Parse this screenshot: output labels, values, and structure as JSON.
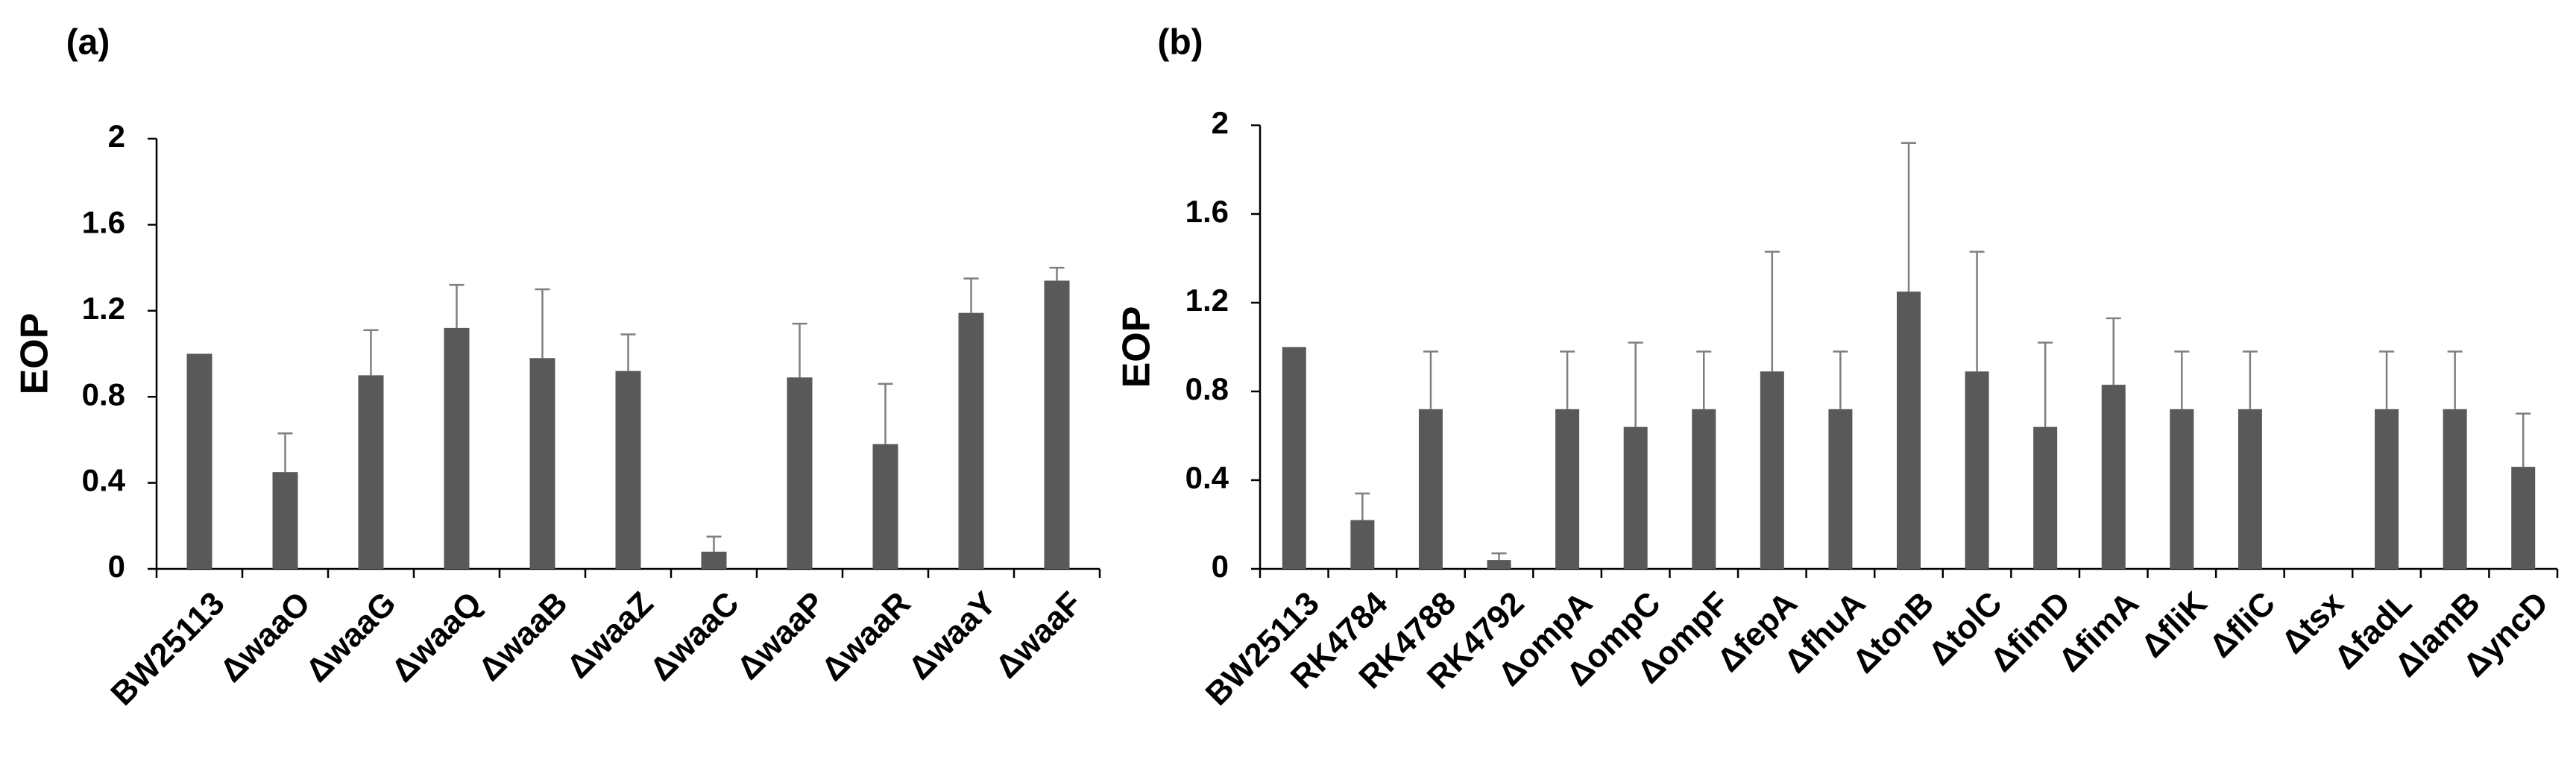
{
  "chart_data": [
    {
      "type": "bar",
      "panel_label": "(a)",
      "title": "",
      "xlabel": "",
      "ylabel": "EOP",
      "ylim": [
        0,
        2
      ],
      "yticks": [
        "0",
        "0.4",
        "0.8",
        "1.2",
        "1.6",
        "2"
      ],
      "ytick_values": [
        0,
        0.4,
        0.8,
        1.2,
        1.6,
        2
      ],
      "categories": [
        "BW25113",
        "ΔwaaO",
        "ΔwaaG",
        "ΔwaaQ",
        "ΔwaaB",
        "ΔwaaZ",
        "ΔwaaC",
        "ΔwaaP",
        "ΔwaaR",
        "ΔwaaY",
        "ΔwaaF"
      ],
      "values": [
        1.0,
        0.45,
        0.9,
        1.12,
        0.98,
        0.92,
        0.08,
        0.89,
        0.58,
        1.19,
        1.34
      ],
      "errors": [
        0.0,
        0.18,
        0.21,
        0.2,
        0.32,
        0.17,
        0.07,
        0.25,
        0.28,
        0.16,
        0.06
      ]
    },
    {
      "type": "bar",
      "panel_label": "(b)",
      "title": "",
      "xlabel": "",
      "ylabel": "EOP",
      "ylim": [
        0,
        2
      ],
      "yticks": [
        "0",
        "0.4",
        "0.8",
        "1.2",
        "1.6",
        "2"
      ],
      "ytick_values": [
        0,
        0.4,
        0.8,
        1.2,
        1.6,
        2
      ],
      "categories": [
        "BW25113",
        "RK4784",
        "RK4788",
        "RK4792",
        "ΔompA",
        "ΔompC",
        "ΔompF",
        "ΔfepA",
        "ΔfhuA",
        "ΔtonB",
        "ΔtolC",
        "ΔfimD",
        "ΔfimA",
        "ΔfliK",
        "ΔfliC",
        "Δtsx",
        "ΔfadL",
        "ΔlamB",
        "ΔyncD"
      ],
      "values": [
        1.0,
        0.22,
        0.72,
        0.04,
        0.72,
        0.64,
        0.72,
        0.89,
        0.72,
        1.25,
        0.89,
        0.64,
        0.83,
        0.72,
        0.72,
        0.0,
        0.72,
        0.72,
        0.46
      ],
      "errors": [
        0.0,
        0.12,
        0.26,
        0.03,
        0.26,
        0.38,
        0.26,
        0.54,
        0.26,
        0.67,
        0.54,
        0.38,
        0.3,
        0.26,
        0.26,
        0.0,
        0.26,
        0.26,
        0.24
      ]
    }
  ]
}
